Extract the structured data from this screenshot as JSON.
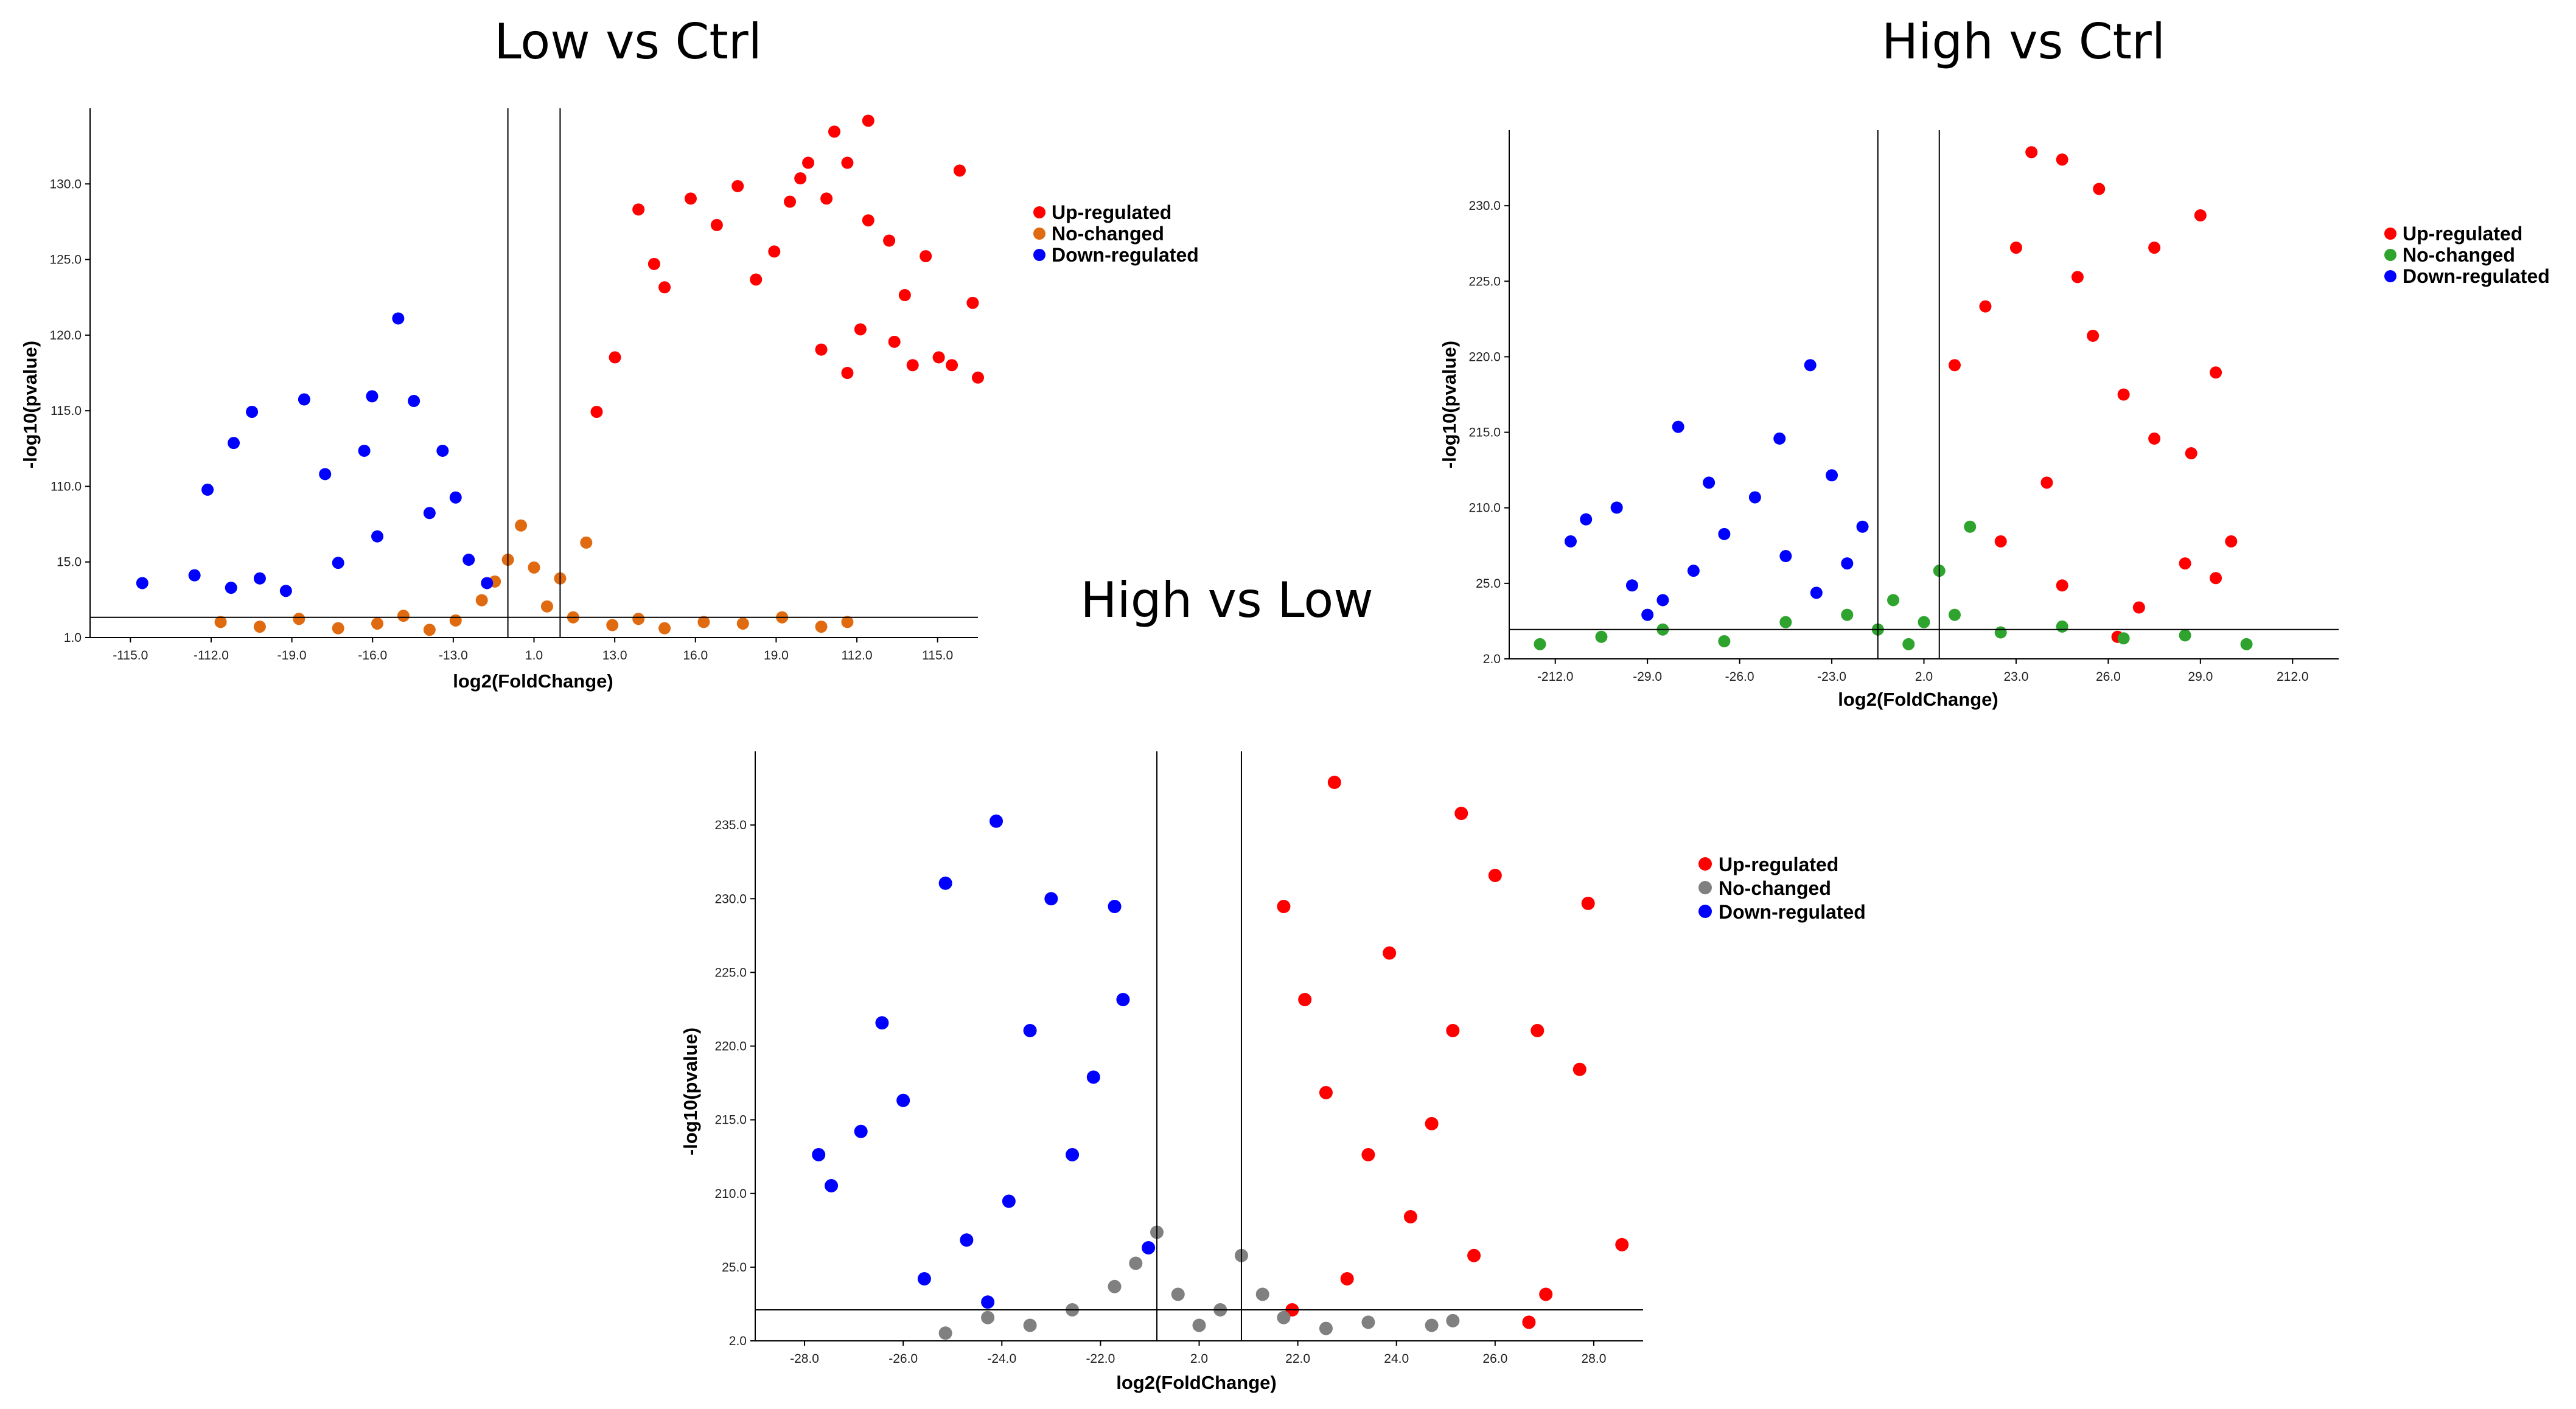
{
  "chart_data": [
    {
      "type": "scatter",
      "title": "Low vs Ctrl",
      "xlabel": "log2(FoldChange)",
      "ylabel": "-log10(pvalue)",
      "x_ticks": [
        "-115.0",
        "-112.0",
        "-19.0",
        "-16.0",
        "-13.0",
        "1.0",
        "13.0",
        "16.0",
        "19.0",
        "112.0",
        "115.0"
      ],
      "y_ticks": [
        "1.0",
        "15.0",
        "110.0",
        "115.0",
        "120.0",
        "125.0",
        "130.0"
      ],
      "xlim": [
        -17,
        17
      ],
      "ylim": [
        0,
        34
      ],
      "threshold_x": [
        -1,
        1
      ],
      "threshold_y": 1.3,
      "legend": [
        {
          "label": "Up-regulated",
          "color": "#ff0000"
        },
        {
          "label": "No-changed",
          "color": "#e06a10"
        },
        {
          "label": "Down-regulated",
          "color": "#0000ff"
        }
      ],
      "series": [
        {
          "name": "Up-regulated",
          "color": "#ff0000",
          "points": [
            [
              11.5,
              32.5
            ],
            [
              12.8,
              33.2
            ],
            [
              12.0,
              30.5
            ],
            [
              10.5,
              30.5
            ],
            [
              16.3,
              30.0
            ],
            [
              11.2,
              28.2
            ],
            [
              12.8,
              26.8
            ],
            [
              9.2,
              24.8
            ],
            [
              15.0,
              24.5
            ],
            [
              16.8,
              21.5
            ],
            [
              15.5,
              18.0
            ],
            [
              14.5,
              17.5
            ],
            [
              12.0,
              17.0
            ],
            [
              17.0,
              16.7
            ],
            [
              16.0,
              17.5
            ],
            [
              11.0,
              18.5
            ],
            [
              12.5,
              19.8
            ],
            [
              13.8,
              19.0
            ],
            [
              2.4,
              14.5
            ],
            [
              3.1,
              18.0
            ],
            [
              5.0,
              22.5
            ],
            [
              4.6,
              24.0
            ],
            [
              7.0,
              26.5
            ],
            [
              8.5,
              23.0
            ],
            [
              4.0,
              27.5
            ],
            [
              6.0,
              28.2
            ],
            [
              7.8,
              29.0
            ],
            [
              10.2,
              29.5
            ],
            [
              9.8,
              28.0
            ],
            [
              13.6,
              25.5
            ],
            [
              14.2,
              22.0
            ]
          ]
        },
        {
          "name": "No-changed",
          "color": "#e06a10",
          "points": [
            [
              -12.0,
              1.0
            ],
            [
              -10.5,
              0.7
            ],
            [
              -9.0,
              1.2
            ],
            [
              -7.5,
              0.6
            ],
            [
              -6.0,
              0.9
            ],
            [
              -5.0,
              1.4
            ],
            [
              -4.0,
              0.5
            ],
            [
              -3.0,
              1.1
            ],
            [
              -2.0,
              2.4
            ],
            [
              -1.5,
              3.6
            ],
            [
              -1.0,
              5.0
            ],
            [
              -0.5,
              7.2
            ],
            [
              0.0,
              4.5
            ],
            [
              0.5,
              2.0
            ],
            [
              1.0,
              3.8
            ],
            [
              1.5,
              1.3
            ],
            [
              2.0,
              6.1
            ],
            [
              3.0,
              0.8
            ],
            [
              4.0,
              1.2
            ],
            [
              5.0,
              0.6
            ],
            [
              6.5,
              1.0
            ],
            [
              8.0,
              0.9
            ],
            [
              9.5,
              1.3
            ],
            [
              11.0,
              0.7
            ],
            [
              12.0,
              1.0
            ]
          ]
        },
        {
          "name": "Down-regulated",
          "color": "#0000ff",
          "points": [
            [
              -5.2,
              20.5
            ],
            [
              -6.2,
              15.5
            ],
            [
              -8.8,
              15.3
            ],
            [
              -4.6,
              15.2
            ],
            [
              -10.8,
              14.5
            ],
            [
              -11.5,
              12.5
            ],
            [
              -12.5,
              9.5
            ],
            [
              -15.0,
              3.5
            ],
            [
              -10.5,
              3.8
            ],
            [
              -9.5,
              3.0
            ],
            [
              -11.6,
              3.2
            ],
            [
              -13.0,
              4.0
            ],
            [
              -7.5,
              4.8
            ],
            [
              -6.0,
              6.5
            ],
            [
              -4.0,
              8.0
            ],
            [
              -3.0,
              9.0
            ],
            [
              -2.5,
              5.0
            ],
            [
              -1.8,
              3.5
            ],
            [
              -8.0,
              10.5
            ],
            [
              -6.5,
              12.0
            ],
            [
              -3.5,
              12.0
            ]
          ]
        }
      ]
    },
    {
      "type": "scatter",
      "title": "High vs Ctrl",
      "xlabel": "log2(FoldChange)",
      "ylabel": "-log10(pvalue)",
      "x_ticks": [
        "-212.0",
        "-29.0",
        "-26.0",
        "-23.0",
        "2.0",
        "23.0",
        "26.0",
        "29.0",
        "212.0"
      ],
      "y_ticks": [
        "2.0",
        "25.0",
        "210.0",
        "215.0",
        "220.0",
        "225.0",
        "230.0"
      ],
      "xlim": [
        -13,
        14
      ],
      "ylim": [
        0,
        36
      ],
      "threshold_x": [
        -1,
        1
      ],
      "threshold_y": 2,
      "legend": [
        {
          "label": "Up-regulated",
          "color": "#ff0000"
        },
        {
          "label": "No-changed",
          "color": "#2ea32e"
        },
        {
          "label": "Down-regulated",
          "color": "#0000ff"
        }
      ],
      "series": [
        {
          "name": "Up-regulated",
          "color": "#ff0000",
          "points": [
            [
              4.0,
              34.5
            ],
            [
              5.0,
              34.0
            ],
            [
              6.2,
              32.0
            ],
            [
              9.5,
              30.2
            ],
            [
              8.0,
              28.0
            ],
            [
              10.0,
              19.5
            ],
            [
              10.5,
              8.0
            ],
            [
              10.0,
              5.5
            ],
            [
              9.0,
              6.5
            ],
            [
              7.5,
              3.5
            ],
            [
              6.8,
              1.5
            ],
            [
              9.2,
              14.0
            ],
            [
              8.0,
              15.0
            ],
            [
              7.0,
              18.0
            ],
            [
              6.0,
              22.0
            ],
            [
              5.5,
              26.0
            ],
            [
              3.5,
              28.0
            ],
            [
              2.5,
              24.0
            ],
            [
              1.5,
              20.0
            ],
            [
              4.5,
              12.0
            ],
            [
              3.0,
              8.0
            ],
            [
              5.0,
              5.0
            ]
          ]
        },
        {
          "name": "No-changed",
          "color": "#2ea32e",
          "points": [
            [
              -12.0,
              1.0
            ],
            [
              -10.0,
              1.5
            ],
            [
              -8.0,
              2.0
            ],
            [
              -6.0,
              1.2
            ],
            [
              -4.0,
              2.5
            ],
            [
              -2.0,
              3.0
            ],
            [
              -1.0,
              2.0
            ],
            [
              -0.5,
              4.0
            ],
            [
              0.0,
              1.0
            ],
            [
              0.5,
              2.5
            ],
            [
              1.0,
              6.0
            ],
            [
              1.5,
              3.0
            ],
            [
              2.0,
              9.0
            ],
            [
              3.0,
              1.8
            ],
            [
              5.0,
              2.2
            ],
            [
              7.0,
              1.4
            ],
            [
              9.0,
              1.6
            ],
            [
              11.0,
              1.0
            ]
          ]
        },
        {
          "name": "Down-regulated",
          "color": "#0000ff",
          "points": [
            [
              -9.5,
              10.3
            ],
            [
              -3.2,
              20.0
            ],
            [
              -7.5,
              15.8
            ],
            [
              -4.2,
              15.0
            ],
            [
              -11.0,
              8.0
            ],
            [
              -10.5,
              9.5
            ],
            [
              -9.0,
              5.0
            ],
            [
              -8.0,
              4.0
            ],
            [
              -7.0,
              6.0
            ],
            [
              -6.0,
              8.5
            ],
            [
              -5.0,
              11.0
            ],
            [
              -4.0,
              7.0
            ],
            [
              -3.0,
              4.5
            ],
            [
              -2.0,
              6.5
            ],
            [
              -1.5,
              9.0
            ],
            [
              -6.5,
              12.0
            ],
            [
              -2.5,
              12.5
            ],
            [
              -8.5,
              3.0
            ]
          ]
        }
      ]
    },
    {
      "type": "scatter",
      "title": "High vs Low",
      "xlabel": "log2(FoldChange)",
      "ylabel": "-log10(pvalue)",
      "x_ticks": [
        "-28.0",
        "-26.0",
        "-24.0",
        "-22.0",
        "2.0",
        "22.0",
        "24.0",
        "26.0",
        "28.0"
      ],
      "y_ticks": [
        "2.0",
        "25.0",
        "210.0",
        "215.0",
        "220.0",
        "225.0",
        "230.0",
        "235.0"
      ],
      "xlim": [
        -10.5,
        10.5
      ],
      "ylim": [
        0,
        38
      ],
      "threshold_x": [
        -1,
        1
      ],
      "threshold_y": 2,
      "legend": [
        {
          "label": "Up-regulated",
          "color": "#ff0000"
        },
        {
          "label": "No-changed",
          "color": "#808080"
        },
        {
          "label": "Down-regulated",
          "color": "#0000ff"
        }
      ],
      "series": [
        {
          "name": "Up-regulated",
          "color": "#ff0000",
          "points": [
            [
              3.2,
              36.0
            ],
            [
              6.2,
              34.0
            ],
            [
              9.2,
              28.2
            ],
            [
              7.0,
              30.0
            ],
            [
              8.0,
              20.0
            ],
            [
              9.0,
              17.5
            ],
            [
              10.0,
              6.2
            ],
            [
              8.2,
              3.0
            ],
            [
              7.8,
              1.2
            ],
            [
              6.5,
              5.5
            ],
            [
              5.0,
              8.0
            ],
            [
              4.0,
              12.0
            ],
            [
              3.0,
              16.0
            ],
            [
              2.5,
              22.0
            ],
            [
              2.0,
              28.0
            ],
            [
              4.5,
              25.0
            ],
            [
              6.0,
              20.0
            ],
            [
              5.5,
              14.0
            ],
            [
              3.5,
              4.0
            ],
            [
              2.2,
              2.0
            ]
          ]
        },
        {
          "name": "No-changed",
          "color": "#808080",
          "points": [
            [
              -6.0,
              0.5
            ],
            [
              -5.0,
              1.5
            ],
            [
              -4.0,
              1.0
            ],
            [
              -3.0,
              2.0
            ],
            [
              -2.0,
              3.5
            ],
            [
              -1.5,
              5.0
            ],
            [
              -1.0,
              7.0
            ],
            [
              -0.5,
              3.0
            ],
            [
              0.0,
              1.0
            ],
            [
              0.5,
              2.0
            ],
            [
              1.0,
              5.5
            ],
            [
              1.5,
              3.0
            ],
            [
              2.0,
              1.5
            ],
            [
              3.0,
              0.8
            ],
            [
              4.0,
              1.2
            ],
            [
              5.5,
              1.0
            ],
            [
              6.0,
              1.3
            ]
          ]
        },
        {
          "name": "Down-regulated",
          "color": "#0000ff",
          "points": [
            [
              -4.8,
              33.5
            ],
            [
              -8.7,
              10.0
            ],
            [
              -7.5,
              20.5
            ],
            [
              -6.0,
              29.5
            ],
            [
              -3.5,
              28.5
            ],
            [
              -2.0,
              28.0
            ],
            [
              -8.0,
              13.5
            ],
            [
              -9.0,
              12.0
            ],
            [
              -7.0,
              15.5
            ],
            [
              -5.5,
              6.5
            ],
            [
              -4.5,
              9.0
            ],
            [
              -3.0,
              12.0
            ],
            [
              -2.5,
              17.0
            ],
            [
              -1.8,
              22.0
            ],
            [
              -1.2,
              6.0
            ],
            [
              -5.0,
              2.5
            ],
            [
              -6.5,
              4.0
            ],
            [
              -4.0,
              20.0
            ]
          ]
        }
      ]
    }
  ]
}
